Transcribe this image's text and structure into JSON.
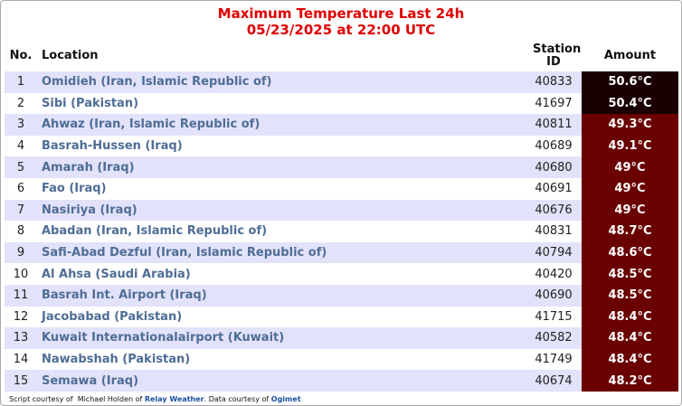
{
  "header": {
    "title": "Maximum Temperature Last 24h",
    "subtitle": "05/23/2025 at 22:00 UTC"
  },
  "table": {
    "columns": [
      "No.",
      "Location",
      "Station ID",
      "Amount"
    ],
    "rows": [
      [
        1,
        "Omidieh (Iran, Islamic Republic of)",
        40833,
        "50.6°C"
      ],
      [
        2,
        "Sibi (Pakistan)",
        41697,
        "50.4°C"
      ],
      [
        3,
        "Ahwaz (Iran, Islamic Republic of)",
        40811,
        "49.3°C"
      ],
      [
        4,
        "Basrah-Hussen (Iraq)",
        40689,
        "49.1°C"
      ],
      [
        5,
        "Amarah (Iraq)",
        40680,
        "49°C"
      ],
      [
        6,
        "Fao (Iraq)",
        40691,
        "49°C"
      ],
      [
        7,
        "Nasiriya (Iraq)",
        40676,
        "49°C"
      ],
      [
        8,
        "Abadan (Iran, Islamic Republic of)",
        40831,
        "48.7°C"
      ],
      [
        9,
        "Safi-Abad Dezful (Iran, Islamic Republic of)",
        40794,
        "48.6°C"
      ],
      [
        10,
        "Al Ahsa (Saudi Arabia)",
        40420,
        "48.5°C"
      ],
      [
        11,
        "Basrah Int. Airport (Iraq)",
        40690,
        "48.5°C"
      ],
      [
        12,
        "Jacobabad (Pakistan)",
        41715,
        "48.4°C"
      ],
      [
        13,
        "Kuwait Internationalairport (Kuwait)",
        40582,
        "48.4°C"
      ],
      [
        14,
        "Nawabshah (Pakistan)",
        41749,
        "48.4°C"
      ],
      [
        15,
        "Semawa (Iraq)",
        40674,
        "48.2°C"
      ]
    ]
  },
  "footer": {
    "prefix": "Script courtesy of  Michael Holden of",
    "credit_link": "Relay Weather",
    "middle": ". Data courtesy of",
    "data_link": "Ogimet"
  }
}
